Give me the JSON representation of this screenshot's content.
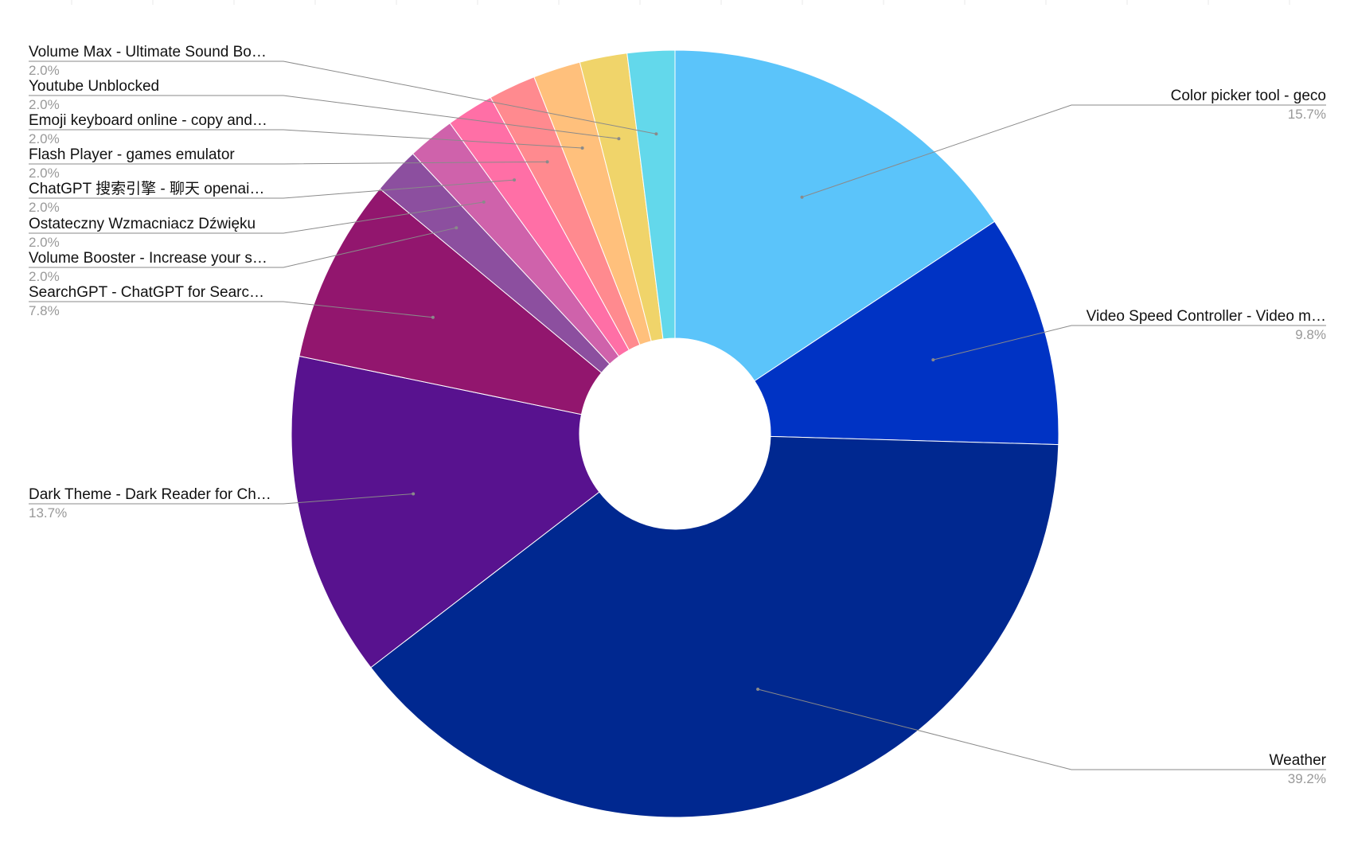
{
  "chart_data": {
    "type": "pie",
    "donut": true,
    "title": "",
    "legend": "none",
    "slices": [
      {
        "label": "Color picker tool - geco",
        "value": 15.7,
        "percent_label": "15.7%",
        "color": "#5bc4fa"
      },
      {
        "label": "Video Speed Controller - Video m…",
        "value": 9.8,
        "percent_label": "9.8%",
        "color": "#0033c4"
      },
      {
        "label": "Weather",
        "value": 39.2,
        "percent_label": "39.2%",
        "color": "#002890"
      },
      {
        "label": "Dark Theme - Dark Reader for Ch…",
        "value": 13.7,
        "percent_label": "13.7%",
        "color": "#58128f"
      },
      {
        "label": "SearchGPT - ChatGPT for Searc…",
        "value": 7.8,
        "percent_label": "7.8%",
        "color": "#92166e"
      },
      {
        "label": "Volume Booster - Increase your s…",
        "value": 2.0,
        "percent_label": "2.0%",
        "color": "#8c4f9f"
      },
      {
        "label": "Ostateczny Wzmacniacz Dźwięku",
        "value": 2.0,
        "percent_label": "2.0%",
        "color": "#cf62ab"
      },
      {
        "label": "ChatGPT 搜索引擎 - 聊天 openai…",
        "value": 2.0,
        "percent_label": "2.0%",
        "color": "#ff6fa6"
      },
      {
        "label": "Flash Player - games emulator",
        "value": 2.0,
        "percent_label": "2.0%",
        "color": "#ff8a8f"
      },
      {
        "label": "Emoji keyboard online - copy and…",
        "value": 2.0,
        "percent_label": "2.0%",
        "color": "#ffc07c"
      },
      {
        "label": "Youtube Unblocked",
        "value": 2.0,
        "percent_label": "2.0%",
        "color": "#f0d46a"
      },
      {
        "label": "Volume Max - Ultimate Sound Bo…",
        "value": 2.0,
        "percent_label": "2.0%",
        "color": "#63d8eb"
      }
    ]
  }
}
